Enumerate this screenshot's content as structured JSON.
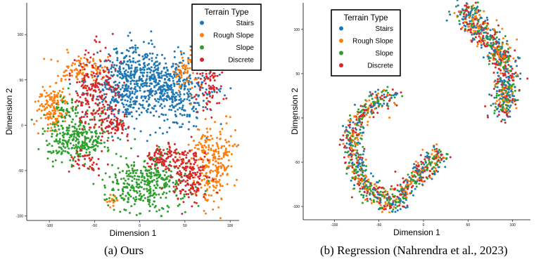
{
  "chart_data": [
    {
      "type": "scatter",
      "caption": "(a)  Ours",
      "xlabel": "Dimension 1",
      "ylabel": "Dimension 2",
      "xlim": [
        -125,
        110
      ],
      "ylim": [
        -105,
        135
      ],
      "xticks": [
        -100,
        -50,
        0,
        50,
        100
      ],
      "yticks": [
        -100,
        -50,
        0,
        50,
        100
      ],
      "grid": false,
      "legend": {
        "title": "Terrain Type",
        "placement": "top-right"
      },
      "series": [
        {
          "name": "Stairs",
          "color": "#1f77b4",
          "clusters": [
            [
              -8,
              55,
              24,
              16,
              400
            ],
            [
              38,
              35,
              22,
              20,
              380
            ],
            [
              -20,
              25,
              14,
              14,
              120
            ]
          ]
        },
        {
          "name": "Rough Slope",
          "color": "#ff7f0e",
          "clusters": [
            [
              -98,
              20,
              9,
              15,
              140
            ],
            [
              -65,
              62,
              14,
              8,
              90
            ],
            [
              82,
              -40,
              13,
              22,
              260
            ],
            [
              52,
              58,
              8,
              10,
              60
            ],
            [
              -30,
              -83,
              5,
              4,
              20
            ]
          ]
        },
        {
          "name": "Slope",
          "color": "#2ca02c",
          "clusters": [
            [
              -70,
              -15,
              18,
              13,
              300
            ],
            [
              5,
              -65,
              22,
              16,
              380
            ],
            [
              -80,
              20,
              7,
              7,
              40
            ]
          ]
        },
        {
          "name": "Discrete",
          "color": "#d62728",
          "clusters": [
            [
              -48,
              35,
              13,
              23,
              230
            ],
            [
              -27,
              0,
              8,
              5,
              60
            ],
            [
              55,
              -55,
              11,
              15,
              180
            ],
            [
              25,
              -35,
              9,
              7,
              90
            ],
            [
              78,
              42,
              8,
              14,
              80
            ],
            [
              -58,
              -42,
              10,
              6,
              40
            ]
          ]
        }
      ]
    },
    {
      "type": "scatter",
      "caption": "(b)  Regression (Nahrendra et al., 2023)",
      "xlabel": "Dimension 1",
      "ylabel": "Dimension 2",
      "xlim": [
        -135,
        120
      ],
      "ylim": [
        -115,
        130
      ],
      "xticks": [
        -100,
        -50,
        0,
        50,
        100
      ],
      "yticks": [
        -100,
        -50,
        0,
        50,
        100
      ],
      "grid": false,
      "legend": {
        "title": "Terrain Type",
        "placement": "top-left"
      },
      "series": [
        {
          "name": "Stairs",
          "color": "#1f77b4",
          "clusters": []
        },
        {
          "name": "Rough Slope",
          "color": "#ff7f0e",
          "clusters": []
        },
        {
          "name": "Slope",
          "color": "#2ca02c",
          "clusters": []
        },
        {
          "name": "Discrete",
          "color": "#d62728",
          "clusters": []
        }
      ],
      "mixed_curves": [
        {
          "path": [
            [
              45,
              125
            ],
            [
              55,
              110
            ],
            [
              68,
              95
            ],
            [
              80,
              82
            ],
            [
              90,
              65
            ],
            [
              95,
              45
            ],
            [
              92,
              25
            ],
            [
              88,
              5
            ]
          ],
          "width": 12,
          "points": 700
        },
        {
          "path": [
            [
              -35,
              25
            ],
            [
              -60,
              15
            ],
            [
              -78,
              -10
            ],
            [
              -80,
              -35
            ],
            [
              -75,
              -60
            ],
            [
              -62,
              -78
            ],
            [
              -45,
              -95
            ],
            [
              -30,
              -95
            ],
            [
              -20,
              -80
            ],
            [
              -5,
              -65
            ],
            [
              5,
              -55
            ],
            [
              15,
              -45
            ],
            [
              12,
              -35
            ]
          ],
          "width": 10,
          "points": 900
        }
      ]
    }
  ]
}
